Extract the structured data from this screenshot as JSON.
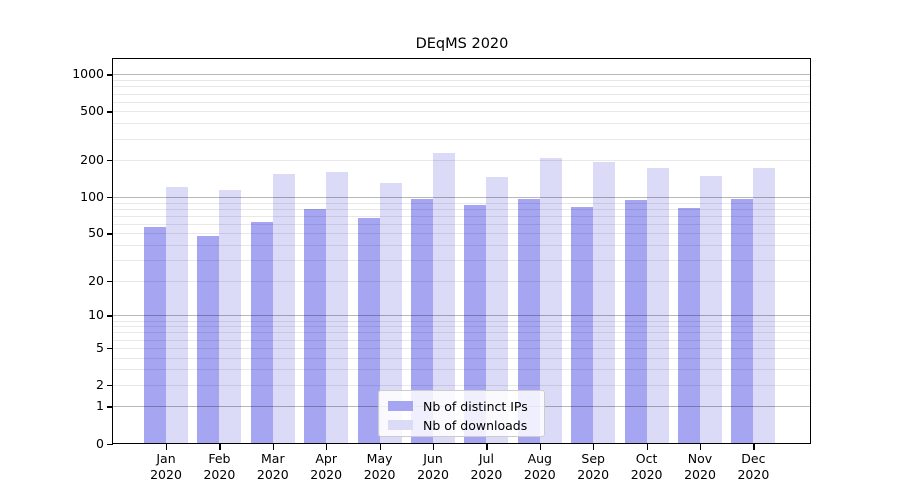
{
  "chart_data": {
    "type": "bar",
    "title": "DEqMS 2020",
    "y_scale": "log1p",
    "categories": [
      "Jan",
      "Feb",
      "Mar",
      "Apr",
      "May",
      "Jun",
      "Jul",
      "Aug",
      "Sep",
      "Oct",
      "Nov",
      "Dec"
    ],
    "x_year_label": "2020",
    "series": [
      {
        "name": "Nb of distinct IPs",
        "color": "#a5a5f1",
        "values": [
          57,
          48,
          62,
          80,
          67,
          97,
          86,
          97,
          82,
          94,
          81,
          96
        ]
      },
      {
        "name": "Nb of downloads",
        "color": "#dbdbf8",
        "values": [
          120,
          115,
          153,
          160,
          130,
          230,
          145,
          210,
          192,
          172,
          148,
          172
        ]
      }
    ],
    "y_ticks": [
      0,
      1,
      2,
      5,
      10,
      20,
      50,
      100,
      200,
      500,
      1000
    ],
    "y_tick_labels": [
      "0",
      "1",
      "2",
      "5",
      "10",
      "20",
      "50",
      "100",
      "200",
      "500",
      "1000"
    ],
    "ylim": [
      0,
      1337
    ],
    "grid": true,
    "legend_position": "inside-bottom-center"
  },
  "colors": {
    "grid_major": "rgba(0,0,0,0.28)",
    "grid_minor": "rgba(0,0,0,0.09)",
    "axis": "#000000",
    "legend_border": "#cccccc"
  }
}
